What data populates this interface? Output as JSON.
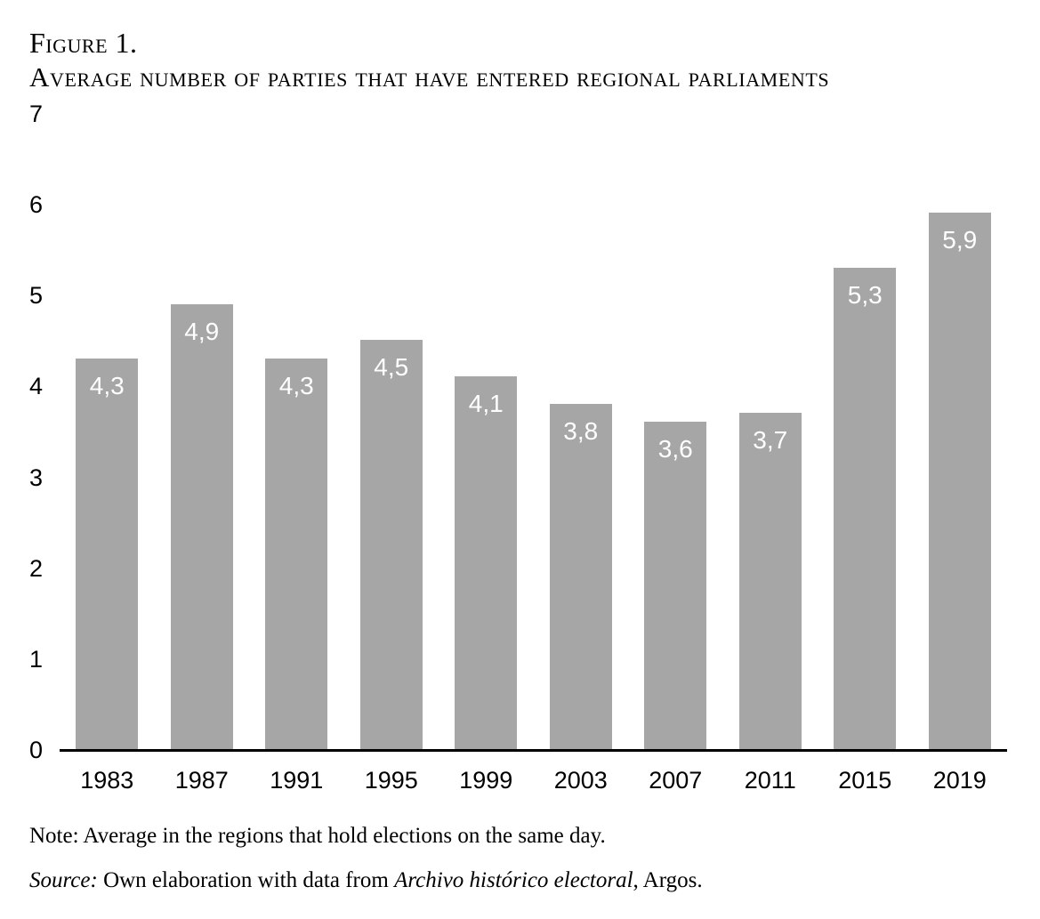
{
  "figure": {
    "label": "Figure 1.",
    "title": "Average number of parties that have entered regional parliaments"
  },
  "chart_data": {
    "type": "bar",
    "title": "Average number of parties that have entered regional parliaments",
    "categories": [
      "1983",
      "1987",
      "1991",
      "1995",
      "1999",
      "2003",
      "2007",
      "2011",
      "2015",
      "2019"
    ],
    "values": [
      4.3,
      4.9,
      4.3,
      4.5,
      4.1,
      3.8,
      3.6,
      3.7,
      5.3,
      5.9
    ],
    "value_labels": [
      "4,3",
      "4,9",
      "4,3",
      "4,5",
      "4,1",
      "3,8",
      "3,6",
      "3,7",
      "5,3",
      "5,9"
    ],
    "xlabel": "",
    "ylabel": "",
    "ylim": [
      0,
      7
    ],
    "yticks": [
      0,
      1,
      2,
      3,
      4,
      5,
      6,
      7
    ],
    "grid": false,
    "legend": false,
    "bar_color": "#a6a6a6",
    "value_label_color": "#ffffff",
    "axis_color": "#000000"
  },
  "note": "Note: Average in the regions that hold elections on the same day.",
  "source": {
    "prefix_italic": "Source:",
    "middle": " Own elaboration with data from ",
    "work_italic": "Archivo histórico electoral",
    "suffix": ", Argos."
  }
}
